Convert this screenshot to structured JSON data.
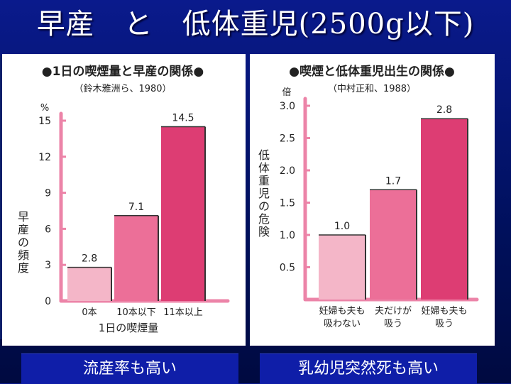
{
  "slide_title": "早産　と　低体重児(2500g以下)",
  "captions": {
    "left": "流産率も高い",
    "right": "乳幼児突然死も高い"
  },
  "colors": {
    "axis": "#ec84a8",
    "bar_light": "#f4b6c8",
    "bar_mid": "#ec6f98",
    "bar_dark": "#dd3d73"
  },
  "chart_data": [
    {
      "type": "bar",
      "title": "●1日の喫煙量と早産の関係●",
      "subtitle": "（鈴木雅洲ら、1980）",
      "unit": "%",
      "ylabel": "早産の頻度",
      "xlabel": "1日の喫煙量",
      "categories": [
        [
          "0本"
        ],
        [
          "10本以下"
        ],
        [
          "11本以上"
        ]
      ],
      "values": [
        2.8,
        7.1,
        14.5
      ],
      "value_labels": [
        "2.8",
        "7.1",
        "14.5"
      ],
      "yticks": [
        "0",
        "3",
        "6",
        "9",
        "12",
        "15"
      ],
      "ylim": [
        0,
        15
      ]
    },
    {
      "type": "bar",
      "title": "●喫煙と低体重児出生の関係●",
      "subtitle": "（中村正和、1988）",
      "unit": "倍",
      "ylabel": "低体重児の危険",
      "xlabel": "",
      "categories": [
        [
          "妊婦も夫も",
          "吸わない"
        ],
        [
          "夫だけが",
          "吸う"
        ],
        [
          "妊婦も夫も",
          "吸う"
        ]
      ],
      "values": [
        1.0,
        1.7,
        2.8
      ],
      "value_labels": [
        "1.0",
        "1.7",
        "2.8"
      ],
      "yticks": [
        "0.5",
        "1.0",
        "1.5",
        "2.0",
        "2.5",
        "3.0"
      ],
      "ylim": [
        0,
        3.0
      ]
    }
  ]
}
